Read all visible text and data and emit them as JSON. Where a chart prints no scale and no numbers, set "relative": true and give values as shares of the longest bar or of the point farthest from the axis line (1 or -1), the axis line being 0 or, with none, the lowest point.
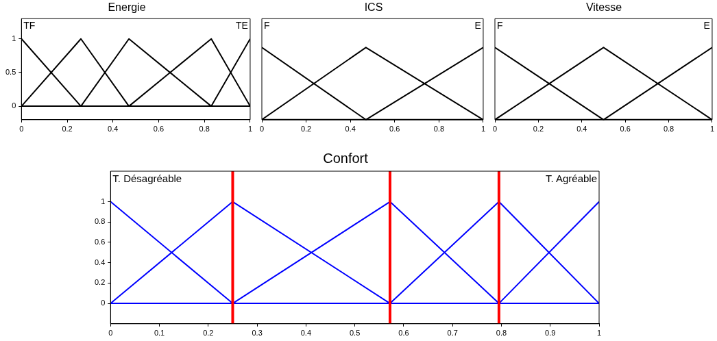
{
  "chart_data": [
    {
      "type": "line",
      "title": "Energie",
      "annotations": [
        "TF",
        "TE"
      ],
      "xlim": [
        0,
        1
      ],
      "xticks": [
        0,
        0.2,
        0.4,
        0.6,
        0.8,
        1
      ],
      "ylim": [
        -0.2,
        1.3
      ],
      "yticks": [
        0,
        0.5,
        1
      ],
      "marker": "none",
      "series": [
        {
          "color": "#000000",
          "x": [
            0,
            0.26,
            1
          ],
          "values": [
            1,
            0,
            0
          ]
        },
        {
          "color": "#000000",
          "x": [
            0,
            0.26,
            0.47,
            1
          ],
          "values": [
            0,
            1,
            0,
            0
          ]
        },
        {
          "color": "#000000",
          "x": [
            0,
            0.26,
            0.47,
            0.83,
            1
          ],
          "values": [
            0,
            0,
            1,
            0,
            0
          ]
        },
        {
          "color": "#000000",
          "x": [
            0,
            0.47,
            0.83,
            1
          ],
          "values": [
            0,
            0,
            1,
            0
          ]
        },
        {
          "color": "#000000",
          "x": [
            0,
            0.83,
            1
          ],
          "values": [
            0,
            0,
            1
          ]
        }
      ]
    },
    {
      "type": "line",
      "title": "ICS",
      "annotations": [
        "F",
        "E"
      ],
      "xlim": [
        0,
        1
      ],
      "xticks": [
        0,
        0.2,
        0.4,
        0.6,
        0.8,
        1
      ],
      "relative": true,
      "tick_labels": "x",
      "marker": "none",
      "series": [
        {
          "color": "#000000",
          "x": [
            0,
            0.47,
            1
          ],
          "values": [
            1,
            0,
            0
          ]
        },
        {
          "color": "#000000",
          "x": [
            0,
            0.47,
            1
          ],
          "values": [
            0,
            1,
            0
          ]
        },
        {
          "color": "#000000",
          "x": [
            0,
            0.47,
            1
          ],
          "values": [
            0,
            0,
            1
          ]
        }
      ]
    },
    {
      "type": "line",
      "title": "Vitesse",
      "annotations": [
        "F",
        "E"
      ],
      "xlim": [
        0,
        1
      ],
      "xticks": [
        0,
        0.2,
        0.4,
        0.6,
        0.8,
        1
      ],
      "relative": true,
      "tick_labels": "x",
      "marker": "none",
      "series": [
        {
          "color": "#000000",
          "x": [
            0,
            0.5,
            1
          ],
          "values": [
            1,
            0,
            0
          ]
        },
        {
          "color": "#000000",
          "x": [
            0,
            0.5,
            1
          ],
          "values": [
            0,
            1,
            0
          ]
        },
        {
          "color": "#000000",
          "x": [
            0,
            0.5,
            1
          ],
          "values": [
            0,
            0,
            1
          ]
        }
      ]
    },
    {
      "type": "line",
      "title": "Confort",
      "annotations": [
        "T. Désagréable",
        "T. Agréable"
      ],
      "xlim": [
        0,
        1
      ],
      "xticks": [
        0,
        0.1,
        0.2,
        0.3,
        0.4,
        0.5,
        0.6,
        0.7,
        0.8,
        0.9,
        1
      ],
      "ylim": [
        -0.2,
        1.3
      ],
      "yticks": [
        0,
        0.2,
        0.4,
        0.6,
        0.8,
        1
      ],
      "marker": "none",
      "ref_lines": [
        {
          "axis": "x",
          "value": 0.25,
          "color": "#ff0000"
        },
        {
          "axis": "x",
          "value": 0.572,
          "color": "#ff0000"
        },
        {
          "axis": "x",
          "value": 0.795,
          "color": "#ff0000"
        }
      ],
      "series": [
        {
          "color": "#0000ff",
          "x": [
            0,
            0.25,
            1
          ],
          "values": [
            1,
            0,
            0
          ]
        },
        {
          "color": "#0000ff",
          "x": [
            0,
            0.25,
            0.572,
            1
          ],
          "values": [
            0,
            1,
            0,
            0
          ]
        },
        {
          "color": "#0000ff",
          "x": [
            0,
            0.25,
            0.572,
            0.795,
            1
          ],
          "values": [
            0,
            0,
            1,
            0,
            0
          ]
        },
        {
          "color": "#0000ff",
          "x": [
            0,
            0.572,
            0.795,
            1
          ],
          "values": [
            0,
            0,
            1,
            0
          ]
        },
        {
          "color": "#0000ff",
          "x": [
            0,
            0.795,
            1
          ],
          "values": [
            0,
            0,
            1
          ]
        }
      ]
    }
  ]
}
